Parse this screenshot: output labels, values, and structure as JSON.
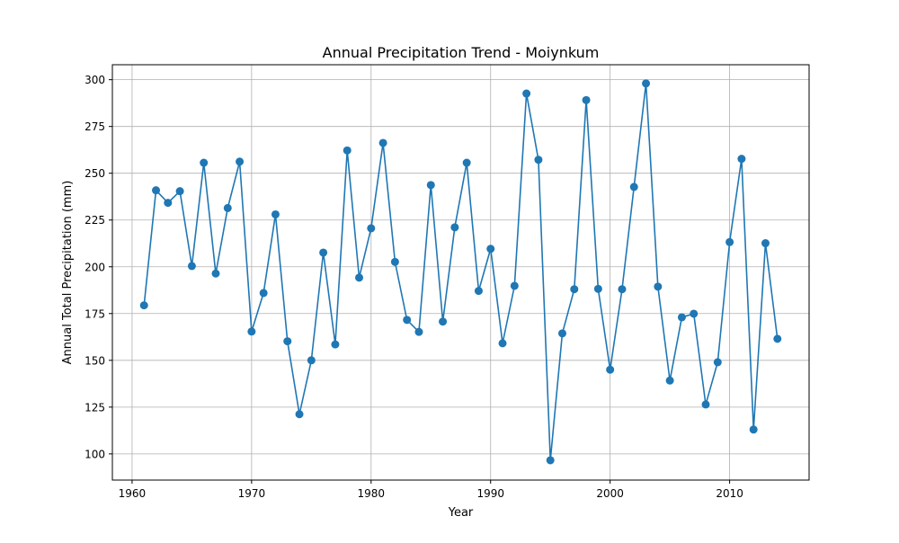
{
  "chart_data": {
    "type": "line",
    "title": "Annual Precipitation Trend - Moiynkum",
    "xlabel": "Year",
    "ylabel": "Annual Total Precipitation (mm)",
    "xlim": [
      1958.35,
      2016.65
    ],
    "ylim": [
      86.0,
      308.0
    ],
    "x_ticks": [
      1960,
      1970,
      1980,
      1990,
      2000,
      2010
    ],
    "y_ticks": [
      100,
      125,
      150,
      175,
      200,
      225,
      250,
      275,
      300
    ],
    "grid": true,
    "legend": "none",
    "marker": "circle",
    "series": [
      {
        "color": "#1f77b4",
        "x": [
          1961,
          1962,
          1963,
          1964,
          1965,
          1966,
          1967,
          1968,
          1969,
          1970,
          1971,
          1972,
          1973,
          1974,
          1975,
          1976,
          1977,
          1978,
          1979,
          1980,
          1981,
          1982,
          1983,
          1984,
          1985,
          1986,
          1987,
          1988,
          1989,
          1990,
          1991,
          1992,
          1993,
          1994,
          1995,
          1996,
          1997,
          1998,
          1999,
          2000,
          2001,
          2002,
          2003,
          2004,
          2005,
          2006,
          2007,
          2008,
          2009,
          2010,
          2011,
          2012,
          2013,
          2014
        ],
        "y": [
          179.4,
          240.9,
          234.2,
          240.4,
          200.4,
          255.6,
          196.4,
          231.4,
          256.2,
          165.4,
          186.0,
          228.0,
          160.2,
          121.2,
          150.0,
          207.6,
          158.5,
          262.2,
          194.2,
          220.6,
          266.2,
          202.6,
          171.6,
          165.2,
          243.7,
          170.7,
          221.1,
          255.6,
          187.1,
          209.6,
          159.1,
          189.8,
          292.6,
          257.2,
          96.6,
          164.4,
          188.0,
          289.1,
          188.2,
          145.0,
          188.0,
          242.7,
          298.0,
          189.4,
          139.2,
          173.0,
          174.9,
          126.4,
          149.0,
          213.2,
          257.7,
          113.0,
          212.6,
          161.5
        ]
      }
    ]
  }
}
